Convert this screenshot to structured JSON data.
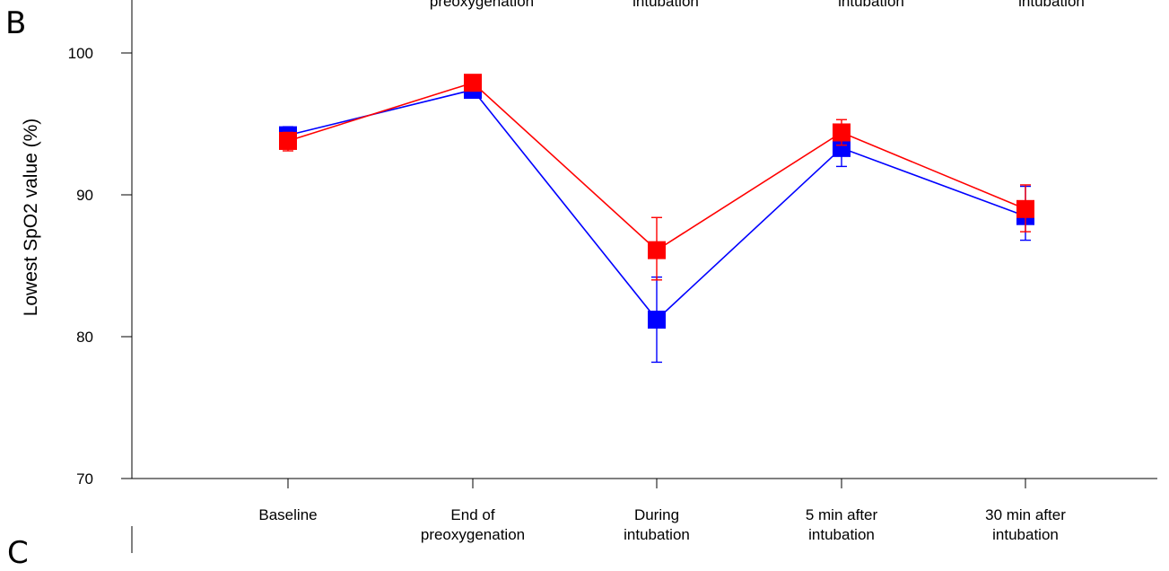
{
  "panel_labels": {
    "current": "B",
    "next": "C"
  },
  "top_cut_labels": [
    "preoxygenation",
    "intubation",
    "intubation",
    "intubation"
  ],
  "colors": {
    "series_blue": "#0000ff",
    "series_red": "#ff0000",
    "axis": "#000000"
  },
  "chart_data": {
    "type": "line",
    "title": "",
    "xlabel": "",
    "ylabel": "Lowest SpO2 value (%)",
    "categories": [
      [
        "Baseline"
      ],
      [
        "End of",
        "preoxygenation"
      ],
      [
        "During",
        "intubation"
      ],
      [
        "5 min after",
        "intubation"
      ],
      [
        "30 min after",
        "intubation"
      ]
    ],
    "ylim": [
      70,
      103.5
    ],
    "yticks": [
      70,
      80,
      90,
      100
    ],
    "grid": false,
    "series": [
      {
        "color": "#0000ff",
        "marker": "square",
        "values": [
          94.2,
          97.4,
          81.2,
          93.3,
          88.5
        ],
        "err_upper": [
          94.8,
          97.8,
          84.2,
          94.8,
          90.6
        ],
        "err_lower": [
          93.4,
          97.0,
          78.2,
          92.0,
          86.8
        ]
      },
      {
        "color": "#ff0000",
        "marker": "square",
        "values": [
          93.8,
          97.9,
          86.1,
          94.4,
          89.0
        ],
        "err_upper": [
          94.4,
          98.3,
          88.4,
          95.3,
          90.7
        ],
        "err_lower": [
          93.1,
          97.5,
          84.0,
          93.5,
          87.4
        ]
      }
    ]
  }
}
